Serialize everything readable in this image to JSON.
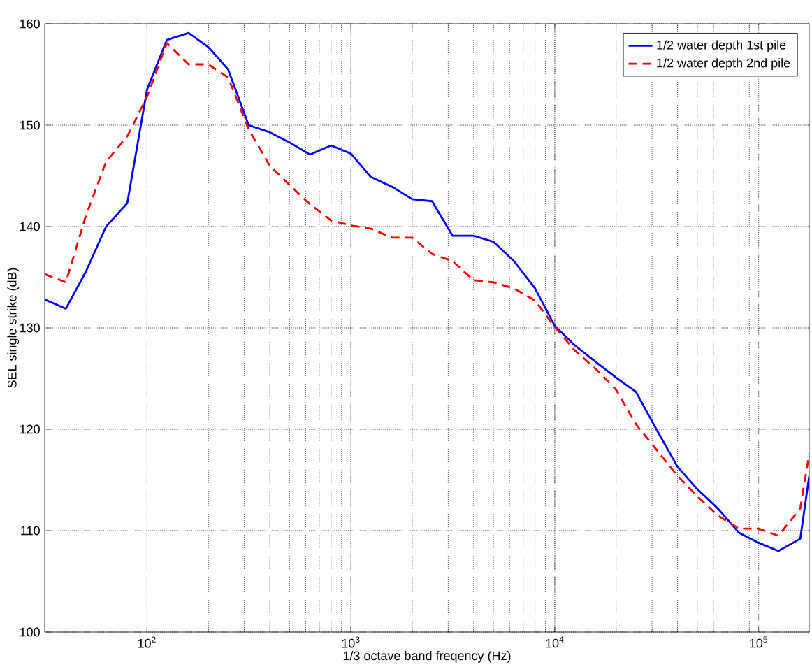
{
  "chart_data": {
    "type": "line",
    "xlabel": "1/3 octave band freqency (Hz)",
    "ylabel": "SEL single strike (dB)",
    "x": [
      31.5,
      40,
      50,
      63,
      80,
      100,
      125,
      160,
      200,
      250,
      315,
      400,
      500,
      630,
      800,
      1000,
      1250,
      1600,
      2000,
      2500,
      3150,
      4000,
      5000,
      6300,
      8000,
      10000,
      12500,
      16000,
      20000,
      25000,
      31500,
      40000,
      50000,
      63000,
      80000,
      100000,
      125000,
      160000,
      177000
    ],
    "series": [
      {
        "name": "1/2 water depth 1st pile",
        "color": "#0000ff",
        "line_style": "solid",
        "values": [
          132.8,
          131.9,
          135.5,
          140,
          142.3,
          153.5,
          158.4,
          159.1,
          157.7,
          155.5,
          150,
          149.3,
          148.3,
          147.1,
          148,
          147.2,
          144.9,
          143.9,
          142.7,
          142.5,
          139.1,
          139.1,
          138.5,
          136.6,
          133.9,
          130.2,
          128.3,
          126.6,
          125.1,
          123.7,
          120,
          116.3,
          114.1,
          112.2,
          109.8,
          108.8,
          108,
          109.2,
          115.4
        ]
      },
      {
        "name": "1/2 water depth 2nd pile",
        "color": "#ff0000",
        "line_style": "dashed",
        "values": [
          135.3,
          134.5,
          141,
          146.4,
          148.9,
          152.8,
          158.1,
          156,
          156,
          154.7,
          149.6,
          146,
          144.1,
          142.2,
          140.6,
          140.1,
          139.8,
          138.9,
          138.9,
          137.3,
          136.6,
          134.7,
          134.5,
          133.9,
          132.7,
          130.1,
          127.8,
          125.9,
          123.9,
          120.5,
          118,
          115.4,
          113.4,
          111.5,
          110.2,
          110.2,
          109.5,
          112.2,
          117.6
        ]
      }
    ],
    "log": "x",
    "xlim": [
      31.5,
      177000
    ],
    "xticks": [
      {
        "value": 100,
        "label": "10$^{2}$"
      },
      {
        "value": 1000,
        "label": "10$^{3}$"
      },
      {
        "value": 10000,
        "label": "10$^{4}$"
      },
      {
        "value": 100000,
        "label": "10$^{5}$"
      }
    ],
    "ylim": [
      100,
      160
    ],
    "yticks": [
      100,
      110,
      120,
      130,
      140,
      150,
      160
    ],
    "grid": true,
    "legend": "top right"
  }
}
